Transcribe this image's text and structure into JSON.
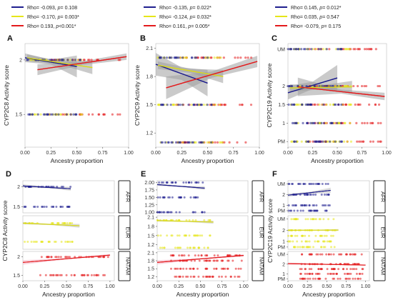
{
  "colors": {
    "AFR": "#1f1f8f",
    "EUR": "#e6e619",
    "NATAM": "#e31a1c"
  },
  "panel_labels": [
    "A",
    "B",
    "C",
    "D",
    "E",
    "F"
  ],
  "legend": [
    [
      {
        "color": "#1f1f8f",
        "rho": "Rho= -0.093, ",
        "p": "p",
        "rest": "= 0.108"
      },
      {
        "color": "#e6e619",
        "rho": "Rho= -0.170, ",
        "p": "p",
        "rest": "= 0.003*"
      },
      {
        "color": "#e31a1c",
        "rho": "Rho= 0.193, ",
        "p": "p",
        "rest": "<0.001*"
      }
    ],
    [
      {
        "color": "#1f1f8f",
        "rho": "Rho= -0.135, ",
        "p": "p",
        "rest": "= 0.022*"
      },
      {
        "color": "#e6e619",
        "rho": "Rho= -0.124, ",
        "p": "p",
        "rest": "= 0.032*"
      },
      {
        "color": "#e31a1c",
        "rho": "Rho= 0.161, ",
        "p": "p",
        "rest": "= 0.005*"
      }
    ],
    [
      {
        "color": "#1f1f8f",
        "rho": "Rho= 0.145, ",
        "p": "p",
        "rest": "= 0.012*"
      },
      {
        "color": "#e6e619",
        "rho": "Rho= 0.035, ",
        "p": "p",
        "rest": "= 0.547"
      },
      {
        "color": "#e31a1c",
        "rho": "Rho= -0.079, ",
        "p": "p",
        "rest": "= 0.175"
      }
    ]
  ],
  "strip_labels": [
    "AFR",
    "EUR",
    "NATAM"
  ],
  "chart_data": [
    {
      "panel": "A",
      "type": "scatter",
      "xlabel": "Ancestry proportion",
      "ylabel": "CYP2C8 Activity score",
      "xlim": [
        0,
        1
      ],
      "ylim": [
        1.2,
        2.15
      ],
      "xticks": [
        "0.00",
        "0.25",
        "0.50",
        "0.75",
        "1.00"
      ],
      "xtick_values": [
        0,
        0.25,
        0.5,
        0.75,
        1
      ],
      "yticks": [
        "1.5",
        "2"
      ],
      "ytick_values": [
        1.5,
        2
      ],
      "point_levels": [
        2,
        1.5
      ],
      "x_ranges": {
        "AFR": [
          0,
          0.55
        ],
        "EUR": [
          0.05,
          0.6
        ],
        "NATAM": [
          0.2,
          0.95
        ]
      },
      "fits": [
        {
          "group": "AFR",
          "x": [
            0,
            0.5
          ],
          "y": [
            2.02,
            1.94
          ],
          "band": [
            0.04,
            0.1
          ]
        },
        {
          "group": "EUR",
          "x": [
            0.02,
            0.65
          ],
          "y": [
            2.02,
            1.93
          ],
          "band": [
            0.03,
            0.06
          ]
        },
        {
          "group": "NATAM",
          "x": [
            0.12,
            0.98
          ],
          "y": [
            1.91,
            2.03
          ],
          "band": [
            0.05,
            0.03
          ]
        }
      ]
    },
    {
      "panel": "B",
      "type": "scatter",
      "xlabel": "Ancestry proportion",
      "ylabel": "CYP2C9 Activity score",
      "xlim": [
        0,
        1
      ],
      "ylim": [
        1.05,
        2.15
      ],
      "xticks": [
        "0.00",
        "0.25",
        "0.50",
        "0.75",
        "1.00"
      ],
      "xtick_values": [
        0,
        0.25,
        0.5,
        0.75,
        1
      ],
      "yticks": [
        "1.2",
        "1.5",
        "1.8",
        "2.1"
      ],
      "ytick_values": [
        1.2,
        1.5,
        1.8,
        2.1
      ],
      "point_levels": [
        2,
        1.5,
        1.1
      ],
      "x_ranges": {
        "AFR": [
          0,
          0.55
        ],
        "EUR": [
          0.02,
          0.65
        ],
        "NATAM": [
          0.2,
          0.95
        ]
      },
      "fits": [
        {
          "group": "AFR",
          "x": [
            0,
            0.5
          ],
          "y": [
            1.93,
            1.73
          ],
          "band": [
            0.12,
            0.14
          ]
        },
        {
          "group": "EUR",
          "x": [
            0.02,
            0.65
          ],
          "y": [
            1.92,
            1.8
          ],
          "band": [
            0.04,
            0.07
          ]
        },
        {
          "group": "NATAM",
          "x": [
            0.1,
            0.98
          ],
          "y": [
            1.68,
            1.96
          ],
          "band": [
            0.12,
            0.06
          ]
        }
      ]
    },
    {
      "panel": "C",
      "type": "scatter",
      "xlabel": "Ancestry proportion",
      "ylabel": "CYP2C19 Activity score",
      "xlim": [
        0,
        1
      ],
      "ylim": [
        0.35,
        3.15
      ],
      "xticks": [
        "0.00",
        "0.25",
        "0.50",
        "0.75",
        "1.00"
      ],
      "xtick_values": [
        0,
        0.25,
        0.5,
        0.75,
        1
      ],
      "yticks": [
        "PM",
        "1",
        "1.5",
        "2",
        "UM"
      ],
      "ytick_values": [
        0.5,
        1,
        1.5,
        2,
        3
      ],
      "point_levels": [
        3,
        2,
        1.5,
        1,
        0.5
      ],
      "x_ranges": {
        "AFR": [
          0,
          0.55
        ],
        "EUR": [
          0.02,
          0.65
        ],
        "NATAM": [
          0.2,
          0.95
        ]
      },
      "fits": [
        {
          "group": "AFR",
          "x": [
            0,
            0.5
          ],
          "y": [
            1.82,
            2.22
          ],
          "band": [
            0.18,
            0.35
          ]
        },
        {
          "group": "EUR",
          "x": [
            0.02,
            0.65
          ],
          "y": [
            1.95,
            1.98
          ],
          "band": [
            0.1,
            0.16
          ]
        },
        {
          "group": "NATAM",
          "x": [
            0.1,
            0.98
          ],
          "y": [
            1.98,
            1.72
          ],
          "band": [
            0.25,
            0.1
          ]
        }
      ]
    },
    {
      "panel": "D",
      "type": "scatter",
      "xlabel": "Ancestry proportion",
      "ylabel": "CYP2C8 Activity score",
      "xlim": [
        0,
        1.05
      ],
      "xticks": [
        "0.00",
        "0.25",
        "0.50",
        "0.75",
        "1.00"
      ],
      "xtick_values": [
        0,
        0.25,
        0.5,
        0.75,
        1
      ],
      "facets": [
        {
          "group": "AFR",
          "ylim": [
            1.35,
            2.15
          ],
          "yticks": [
            "1.5",
            "2"
          ],
          "ytick_values": [
            1.5,
            2
          ],
          "levels": [
            2,
            1.5
          ],
          "x_range": [
            0,
            0.55
          ],
          "fit": {
            "x": [
              0,
              0.55
            ],
            "y": [
              2.02,
              1.95
            ],
            "band": [
              0.04,
              0.05
            ]
          }
        },
        {
          "group": "EUR",
          "ylim": [
            1.3,
            2.2
          ],
          "yticks": [],
          "ytick_values": [],
          "levels": [
            2,
            1.5
          ],
          "x_range": [
            0,
            0.62
          ],
          "fit": {
            "x": [
              0,
              0.65
            ],
            "y": [
              2.0,
              1.93
            ],
            "band": [
              0.03,
              0.05
            ]
          }
        },
        {
          "group": "NATAM",
          "ylim": [
            1.35,
            2.15
          ],
          "yticks": [
            "1.5",
            "2"
          ],
          "ytick_values": [
            1.5,
            2
          ],
          "levels": [
            2,
            1.5
          ],
          "x_range": [
            0.2,
            0.98
          ],
          "fit": {
            "x": [
              0,
              1.0
            ],
            "y": [
              1.85,
              2.05
            ],
            "band": [
              0.06,
              0.03
            ]
          }
        }
      ]
    },
    {
      "panel": "E",
      "type": "scatter",
      "xlabel": "Ancestry proportion",
      "ylabel": "",
      "xlim": [
        0,
        1.05
      ],
      "xticks": [
        "0.00",
        "0.25",
        "0.50",
        "0.75",
        "1.00"
      ],
      "xtick_values": [
        0,
        0.25,
        0.5,
        0.75,
        1
      ],
      "facets": [
        {
          "group": "AFR",
          "ylim": [
            0.98,
            2.06
          ],
          "yticks": [
            "1.00",
            "1.25",
            "1.50",
            "1.75",
            "2.00"
          ],
          "ytick_values": [
            1,
            1.25,
            1.5,
            1.75,
            2
          ],
          "levels": [
            2,
            1.5,
            1
          ],
          "x_range": [
            0,
            0.55
          ],
          "fit": {
            "x": [
              0,
              0.55
            ],
            "y": [
              1.93,
              1.81
            ],
            "band": [
              0.04,
              0.06
            ]
          }
        },
        {
          "group": "EUR",
          "ylim": [
            1.05,
            2.15
          ],
          "yticks": [
            "1.2",
            "1.5",
            "1.8",
            "2.1"
          ],
          "ytick_values": [
            1.2,
            1.5,
            1.8,
            2.1
          ],
          "levels": [
            2,
            1.5,
            1.1
          ],
          "x_range": [
            0,
            0.62
          ],
          "fit": {
            "x": [
              0,
              0.65
            ],
            "y": [
              1.99,
              1.94
            ],
            "band": [
              0.03,
              0.05
            ]
          }
        },
        {
          "group": "NATAM",
          "ylim": [
            1.05,
            2.15
          ],
          "yticks": [
            "1.2",
            "1.5",
            "1.8",
            "2.1"
          ],
          "ytick_values": [
            1.2,
            1.5,
            1.8,
            2.1
          ],
          "levels": [
            2,
            1.8,
            1.5,
            1.2
          ],
          "x_range": [
            0.15,
            0.98
          ],
          "fit": {
            "x": [
              0,
              1.0
            ],
            "y": [
              1.74,
              2.0
            ],
            "band": [
              0.08,
              0.04
            ]
          }
        }
      ]
    },
    {
      "panel": "F",
      "type": "scatter",
      "xlabel": "Ancestry proportion",
      "ylabel": "CYP2C19 Activity score",
      "xlim": [
        0,
        1.05
      ],
      "xticks": [
        "0.00",
        "0.25",
        "0.50",
        "0.75",
        "1.00"
      ],
      "xtick_values": [
        0,
        0.25,
        0.5,
        0.75,
        1
      ],
      "facets": [
        {
          "group": "AFR",
          "ylim": [
            0.3,
            3.3
          ],
          "yticks": [
            "PM",
            "1",
            "2",
            "UM"
          ],
          "ytick_values": [
            0.5,
            1,
            2,
            3
          ],
          "levels": [
            3,
            2,
            1,
            0.5
          ],
          "x_range": [
            0,
            0.55
          ],
          "fit": {
            "x": [
              0,
              0.55
            ],
            "y": [
              1.95,
              2.4
            ],
            "band": [
              0.15,
              0.25
            ]
          }
        },
        {
          "group": "EUR",
          "ylim": [
            0.3,
            3.3
          ],
          "yticks": [
            "PM",
            "1",
            "2",
            "UM"
          ],
          "ytick_values": [
            0.5,
            1,
            2,
            3
          ],
          "levels": [
            3,
            2,
            1.5,
            1,
            0.5
          ],
          "x_range": [
            0,
            0.62
          ],
          "fit": {
            "x": [
              0,
              0.65
            ],
            "y": [
              2.0,
              2.02
            ],
            "band": [
              0.06,
              0.08
            ]
          }
        },
        {
          "group": "NATAM",
          "ylim": [
            0.3,
            3.3
          ],
          "yticks": [
            "PM",
            "1",
            "2",
            "UM"
          ],
          "ytick_values": [
            0.5,
            1,
            2,
            3
          ],
          "levels": [
            3,
            2,
            1.5,
            1,
            0.5
          ],
          "x_range": [
            0.15,
            0.98
          ],
          "fit": {
            "x": [
              0,
              1.0
            ],
            "y": [
              2.05,
              1.9
            ],
            "band": [
              0.1,
              0.06
            ]
          }
        }
      ]
    }
  ]
}
